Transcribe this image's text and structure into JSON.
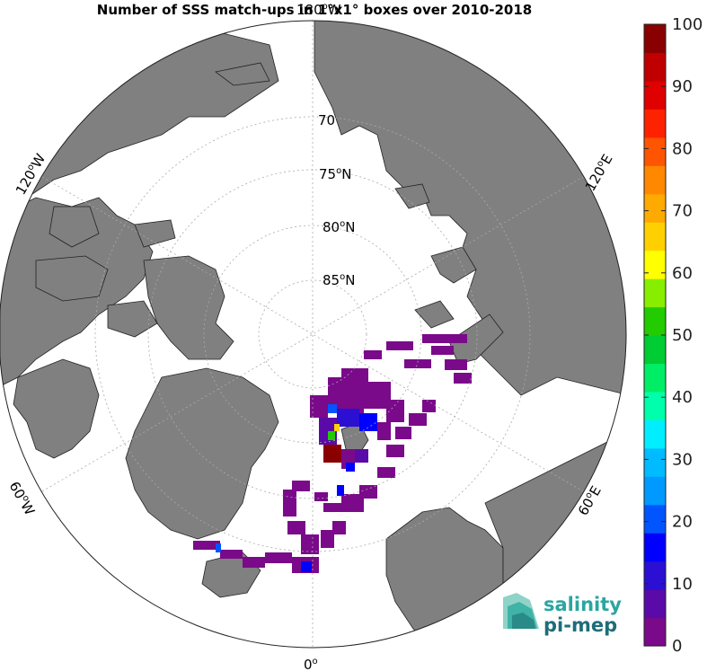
{
  "title": "Number of SSS match-ups in 1°x1° boxes over 2010-2018",
  "lat_labels": [
    {
      "text": "70"
    },
    {
      "text": "75",
      "sup": "o",
      "suffix": "N"
    },
    {
      "text": "80",
      "sup": "o",
      "suffix": "N"
    },
    {
      "text": "85",
      "sup": "o",
      "suffix": "N"
    }
  ],
  "lon_labels": {
    "top": {
      "text": "180",
      "sup": "o",
      "suffix": "W"
    },
    "left": {
      "text": "120",
      "sup": "o",
      "suffix": "W"
    },
    "right": {
      "text": "120",
      "sup": "o",
      "suffix": "E"
    },
    "lower_left": {
      "text": "60",
      "sup": "o",
      "suffix": "W"
    },
    "lower_right": {
      "text": "60",
      "sup": "o",
      "suffix": "E"
    },
    "bottom": {
      "text": "0",
      "sup": "o",
      "suffix": ""
    }
  },
  "colorbar": {
    "min": 0,
    "max": 100,
    "ticks": [
      "0",
      "10",
      "20",
      "30",
      "40",
      "50",
      "60",
      "70",
      "80",
      "90",
      "100"
    ],
    "colors": [
      "#7a0a8a",
      "#5a0aa8",
      "#2b0fd2",
      "#0000ff",
      "#0055ff",
      "#0099ff",
      "#00bbff",
      "#00eeff",
      "#00ffaa",
      "#00ee66",
      "#00cc33",
      "#22cc00",
      "#88ee00",
      "#ffff00",
      "#ffd000",
      "#ffaa00",
      "#ff8800",
      "#ff5500",
      "#ff2200",
      "#e00000",
      "#c00000",
      "#8a0000"
    ]
  },
  "colors": {
    "land": "#808080",
    "ocean": "#ffffff",
    "low_count": "#7a0a8a",
    "mid_count": "#2b0fd2",
    "high_count": "#e00000",
    "graticule": "#aaaaaa"
  },
  "logo": {
    "line1": "salinity",
    "line2": "pi-mep"
  }
}
